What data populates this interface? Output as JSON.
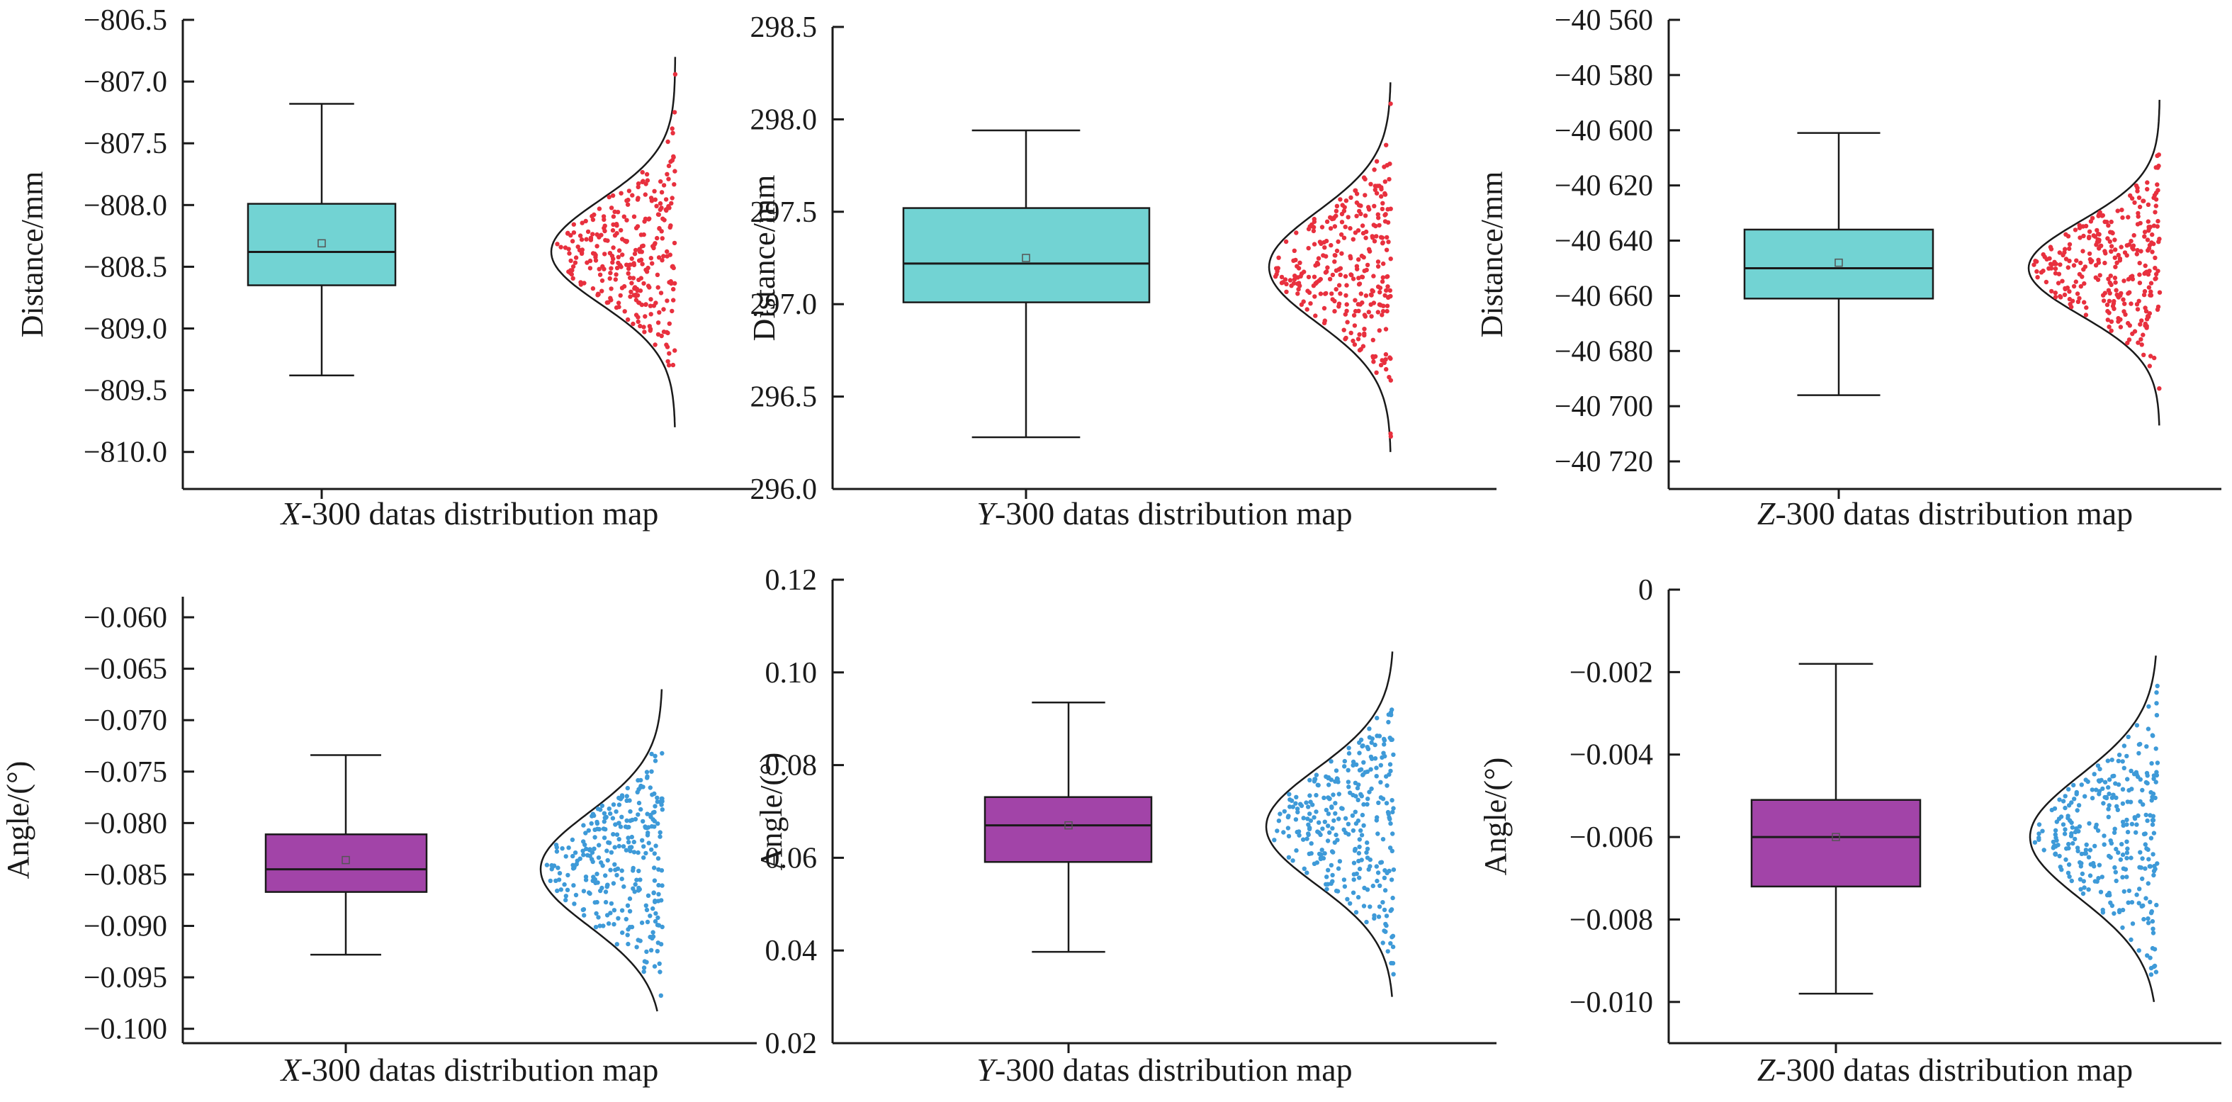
{
  "colors": {
    "box_distance": "#72D3D3",
    "box_angle": "#A244A8",
    "points_distance": "#E8303E",
    "points_angle": "#3E9AD8",
    "curve": "#1a1a1a",
    "axis": "#1a1a1a"
  },
  "chart_data": [
    {
      "type": "box",
      "xlabel_var": "X",
      "xlabel_rest": "-300 datas distribution map",
      "ylabel": "Distance/mm",
      "ylim": [
        -810.3,
        -806.5
      ],
      "yticks": [
        -806.5,
        -807.0,
        -807.5,
        -808.0,
        -808.5,
        -809.0,
        -809.5,
        -810.0
      ],
      "ytick_labels": [
        "−806.5",
        "−807.0",
        "−807.5",
        "−808.0",
        "−808.5",
        "−809.0",
        "−809.5",
        "−810.0"
      ],
      "box": {
        "whisker_low": -809.38,
        "q1": -808.65,
        "median": -808.38,
        "q3": -807.99,
        "whisker_high": -807.18,
        "mean": -808.31
      },
      "distribution": {
        "mean": -808.38,
        "std": 0.42,
        "range": [
          -809.8,
          -806.8
        ],
        "count": 300,
        "point_color": "points_distance"
      }
    },
    {
      "type": "box",
      "xlabel_var": "Y",
      "xlabel_rest": "-300 datas distribution map",
      "ylabel": "Distance/mm",
      "ylim": [
        296.0,
        298.5
      ],
      "yticks": [
        298.5,
        298.0,
        297.5,
        297.0,
        296.5,
        296.0
      ],
      "ytick_labels": [
        "298.5",
        "298.0",
        "297.5",
        "297.0",
        "296.5",
        "296.0"
      ],
      "box": {
        "whisker_low": 296.28,
        "q1": 297.01,
        "median": 297.22,
        "q3": 297.52,
        "whisker_high": 297.94,
        "mean": 297.25
      },
      "distribution": {
        "mean": 297.2,
        "std": 0.3,
        "range": [
          296.2,
          298.2
        ],
        "count": 300,
        "point_color": "points_distance"
      }
    },
    {
      "type": "box",
      "xlabel_var": "Z",
      "xlabel_rest": "-300 datas distribution map",
      "ylabel": "Distance/mm",
      "ylim": [
        -40730,
        -40560
      ],
      "yticks": [
        -40560,
        -40580,
        -40600,
        -40620,
        -40640,
        -40660,
        -40680,
        -40700,
        -40720
      ],
      "ytick_labels": [
        "−40 560",
        "−40 580",
        "−40 600",
        "−40 620",
        "−40 640",
        "−40 660",
        "−40 680",
        "−40 700",
        "−40 720"
      ],
      "box": {
        "whisker_low": -40696,
        "q1": -40661,
        "median": -40650,
        "q3": -40636,
        "whisker_high": -40601,
        "mean": -40648
      },
      "distribution": {
        "mean": -40650,
        "std": 17,
        "range": [
          -40707,
          -40589
        ],
        "count": 300,
        "point_color": "points_distance"
      }
    },
    {
      "type": "box",
      "xlabel_var": "X",
      "xlabel_rest": "-300 datas distribution map",
      "ylabel": "Angle/(°)",
      "ylim": [
        -0.1014,
        -0.058
      ],
      "yticks": [
        -0.06,
        -0.065,
        -0.07,
        -0.075,
        -0.08,
        -0.085,
        -0.09,
        -0.095,
        -0.1
      ],
      "ytick_labels": [
        "−0.060",
        "−0.065",
        "−0.070",
        "−0.075",
        "−0.080",
        "−0.085",
        "−0.090",
        "−0.095",
        "−0.100"
      ],
      "box": {
        "whisker_low": -0.0928,
        "q1": -0.0867,
        "median": -0.0845,
        "q3": -0.0811,
        "whisker_high": -0.0734,
        "mean": -0.0836
      },
      "distribution": {
        "mean": -0.0845,
        "std": 0.0055,
        "range": [
          -0.0983,
          -0.067
        ],
        "count": 300,
        "point_color": "points_angle"
      }
    },
    {
      "type": "box",
      "xlabel_var": "Y",
      "xlabel_rest": "-300 datas distribution map",
      "ylabel": "Angle/(°)",
      "ylim": [
        0.02,
        0.12
      ],
      "yticks": [
        0.12,
        0.1,
        0.08,
        0.06,
        0.04,
        0.02
      ],
      "ytick_labels": [
        "0.12",
        "0.10",
        "0.08",
        "0.06",
        "0.04",
        "0.02"
      ],
      "box": {
        "whisker_low": 0.0397,
        "q1": 0.0591,
        "median": 0.067,
        "q3": 0.0731,
        "whisker_high": 0.0935,
        "mean": 0.067
      },
      "distribution": {
        "mean": 0.0667,
        "std": 0.0125,
        "range": [
          0.03,
          0.1045
        ],
        "count": 300,
        "point_color": "points_angle"
      }
    },
    {
      "type": "box",
      "xlabel_var": "Z",
      "xlabel_rest": "-300 datas distribution map",
      "ylabel": "Angle/(°)",
      "ylim": [
        -0.011,
        0.0
      ],
      "yticks": [
        0,
        -0.002,
        -0.004,
        -0.006,
        -0.008,
        -0.01
      ],
      "ytick_labels": [
        "0",
        "−0.002",
        "−0.004",
        "−0.006",
        "−0.008",
        "−0.010"
      ],
      "box": {
        "whisker_low": -0.0098,
        "q1": -0.0072,
        "median": -0.006,
        "q3": -0.0051,
        "whisker_high": -0.0018,
        "mean": -0.006
      },
      "distribution": {
        "mean": -0.006,
        "std": 0.0015,
        "range": [
          -0.01,
          -0.0016
        ],
        "count": 300,
        "point_color": "points_angle"
      }
    }
  ]
}
